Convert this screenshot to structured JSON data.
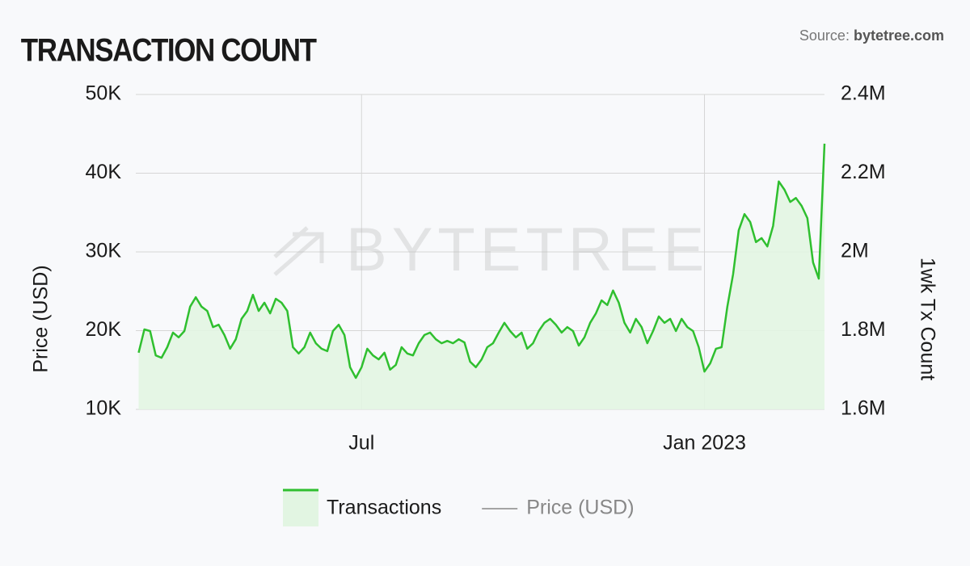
{
  "chart_data": {
    "type": "area",
    "title": "TRANSACTION COUNT",
    "source_label": "Source: ",
    "source_site": "bytetree.com",
    "watermark": "BYTETREE",
    "ylabel": "Price (USD)",
    "y2label": "1wk Tx Count",
    "x": [
      2.1,
      2.2,
      2.3,
      2.4,
      2.5,
      2.6,
      2.7,
      2.8,
      2.9,
      3.0,
      3.1,
      3.2,
      3.3,
      3.4,
      3.5,
      3.6,
      3.7,
      3.8,
      3.9,
      4.0,
      4.1,
      4.2,
      4.3,
      4.4,
      4.5,
      4.6,
      4.7,
      4.8,
      4.9,
      5.0,
      5.1,
      5.2,
      5.3,
      5.4,
      5.5,
      5.6,
      5.7,
      5.8,
      5.9,
      6.0,
      6.1,
      6.2,
      6.3,
      6.4,
      6.5,
      6.6,
      6.7,
      6.8,
      6.9,
      7.0,
      7.1,
      7.2,
      7.3,
      7.4,
      7.5,
      7.6,
      7.7,
      7.8,
      7.9,
      8.0,
      8.1,
      8.2,
      8.3,
      8.4,
      8.5,
      8.6,
      8.7,
      8.8,
      8.9,
      9.0,
      9.1,
      9.2,
      9.3,
      9.4,
      9.5,
      9.6,
      9.7,
      9.8,
      9.9,
      10.0,
      10.1,
      10.2,
      10.3,
      10.4,
      10.5,
      10.6,
      10.7,
      10.8,
      10.9,
      11.0,
      11.1,
      11.2,
      11.3,
      11.4,
      11.5,
      11.6,
      11.7,
      11.8,
      11.9,
      12.0,
      12.1,
      12.2,
      12.3,
      12.4,
      12.5,
      12.6,
      12.7,
      12.8,
      12.9,
      13.0,
      13.1,
      13.2,
      13.3,
      13.4,
      13.5,
      13.6,
      13.7,
      13.8,
      13.9,
      14.0,
      14.1
    ],
    "xlim": [
      2.05,
      14.1
    ],
    "xticks": [
      {
        "value": 6,
        "label": "Jul"
      },
      {
        "value": 12,
        "label": "Jan 2023"
      }
    ],
    "ylim": [
      10000,
      50000
    ],
    "yticks": [
      {
        "value": 10000,
        "label": "10K"
      },
      {
        "value": 20000,
        "label": "20K"
      },
      {
        "value": 30000,
        "label": "30K"
      },
      {
        "value": 40000,
        "label": "40K"
      },
      {
        "value": 50000,
        "label": "50K"
      }
    ],
    "y2lim": [
      1600000,
      2400000
    ],
    "y2ticks": [
      {
        "value": 1600000,
        "label": "1.6M"
      },
      {
        "value": 1800000,
        "label": "1.8M"
      },
      {
        "value": 2000000,
        "label": "2M"
      },
      {
        "value": 2200000,
        "label": "2.2M"
      },
      {
        "value": 2400000,
        "label": "2.4M"
      }
    ],
    "grid": true,
    "series": [
      {
        "name": "Transactions",
        "color": "#2fbf2f",
        "fill": "#e2f5e2",
        "axis": "y2",
        "values": [
          1744000,
          1803000,
          1799000,
          1737000,
          1731000,
          1758000,
          1795000,
          1783000,
          1799000,
          1861000,
          1885000,
          1861000,
          1850000,
          1809000,
          1815000,
          1789000,
          1754000,
          1778000,
          1830000,
          1850000,
          1891000,
          1850000,
          1871000,
          1844000,
          1881000,
          1871000,
          1850000,
          1758000,
          1742000,
          1758000,
          1795000,
          1768000,
          1754000,
          1748000,
          1799000,
          1815000,
          1789000,
          1707000,
          1680000,
          1707000,
          1754000,
          1737000,
          1727000,
          1744000,
          1701000,
          1713000,
          1758000,
          1742000,
          1737000,
          1768000,
          1789000,
          1795000,
          1778000,
          1768000,
          1774000,
          1768000,
          1778000,
          1770000,
          1721000,
          1707000,
          1727000,
          1758000,
          1768000,
          1795000,
          1820000,
          1799000,
          1783000,
          1795000,
          1754000,
          1768000,
          1799000,
          1820000,
          1830000,
          1815000,
          1795000,
          1809000,
          1799000,
          1762000,
          1783000,
          1820000,
          1844000,
          1877000,
          1865000,
          1902000,
          1871000,
          1820000,
          1795000,
          1830000,
          1809000,
          1768000,
          1799000,
          1836000,
          1820000,
          1830000,
          1799000,
          1830000,
          1809000,
          1799000,
          1758000,
          1696000,
          1717000,
          1754000,
          1758000,
          1861000,
          1943000,
          2055000,
          2096000,
          2076000,
          2025000,
          2035000,
          2014000,
          2066000,
          2179000,
          2158000,
          2127000,
          2137000,
          2117000,
          2086000,
          1973000,
          1932000,
          2275000
        ]
      },
      {
        "name": "Price (USD)",
        "color": "#888888",
        "hidden": true,
        "values": [
          null,
          null,
          null,
          null,
          null,
          null,
          null,
          null,
          null,
          null,
          null,
          null,
          null,
          null,
          null,
          null,
          null,
          null,
          null,
          null,
          null,
          null,
          null,
          null,
          null,
          null,
          null,
          null,
          null,
          null,
          null,
          null,
          null,
          null,
          null,
          null,
          null,
          null,
          null,
          null,
          null,
          null,
          null,
          null,
          null,
          null,
          null,
          null,
          null,
          null,
          null,
          null,
          null,
          null,
          null,
          null,
          null,
          null,
          null,
          null,
          null,
          null,
          null,
          null,
          null,
          null,
          null,
          null,
          null,
          null,
          null,
          null,
          null,
          null,
          null,
          null,
          null,
          null,
          null,
          null,
          null,
          null,
          null,
          null,
          null,
          null,
          null,
          null,
          null,
          null,
          null,
          null,
          null,
          null,
          null,
          null,
          null,
          null,
          null,
          null,
          null,
          null,
          null,
          null,
          null,
          null,
          null,
          null,
          null,
          null,
          null,
          null,
          null,
          null,
          null,
          null,
          null,
          null,
          null,
          null,
          null
        ]
      }
    ]
  }
}
